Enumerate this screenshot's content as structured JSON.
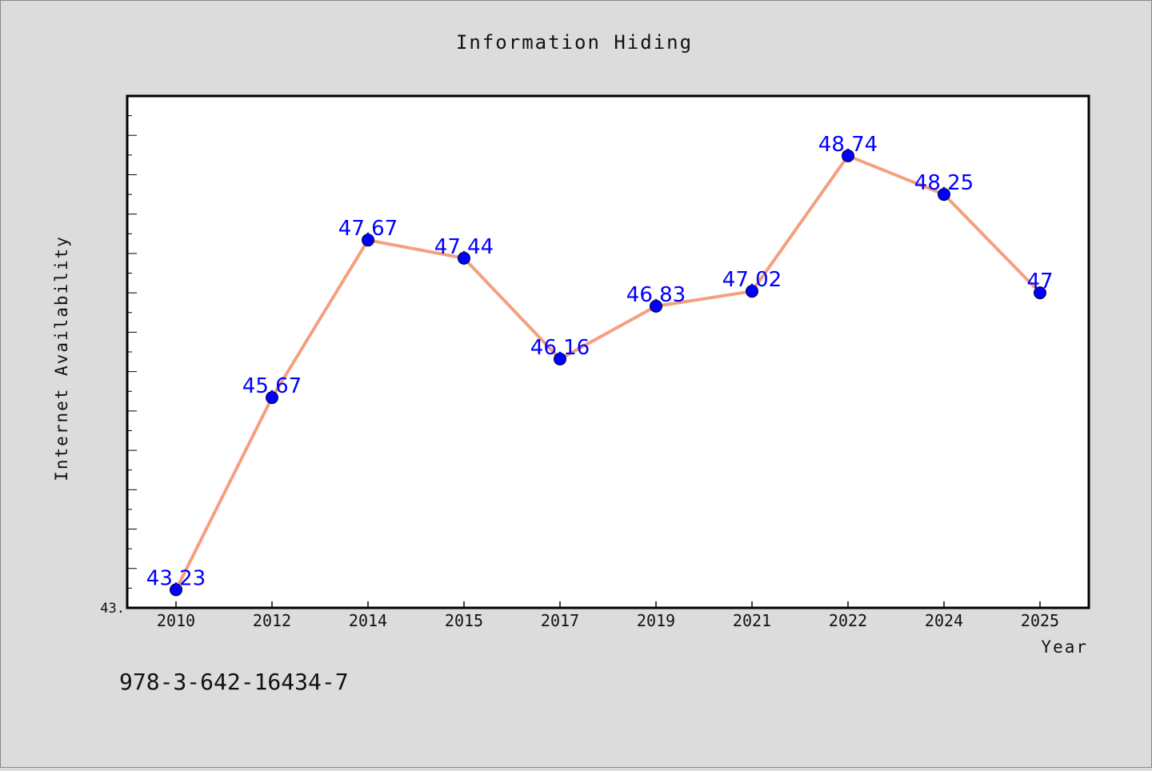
{
  "chart_data": {
    "type": "line",
    "title": "Information Hiding",
    "xlabel": "Year",
    "ylabel": "Internet Availability",
    "categories": [
      "2010",
      "2012",
      "2014",
      "2015",
      "2017",
      "2019",
      "2021",
      "2022",
      "2024",
      "2025"
    ],
    "series": [
      {
        "values": [
          43.23,
          45.67,
          47.67,
          47.44,
          46.16,
          46.83,
          47.02,
          48.74,
          48.25,
          47
        ],
        "value_labels": [
          "43.23",
          "45.67",
          "47.67",
          "47.44",
          "46.16",
          "46.83",
          "47.02",
          "48.74",
          "48.25",
          "47"
        ],
        "line_color": "#f4a07f",
        "marker_color": "#0000ff"
      }
    ],
    "ylim": [
      43,
      49.5
    ],
    "y_tick_label": "43.",
    "grid": false,
    "legend": "none"
  },
  "footer": {
    "text": "978-3-642-16434-7"
  },
  "colors": {
    "background": "#dcdcdc",
    "plot_background": "#ffffff",
    "frame": "#000000"
  }
}
